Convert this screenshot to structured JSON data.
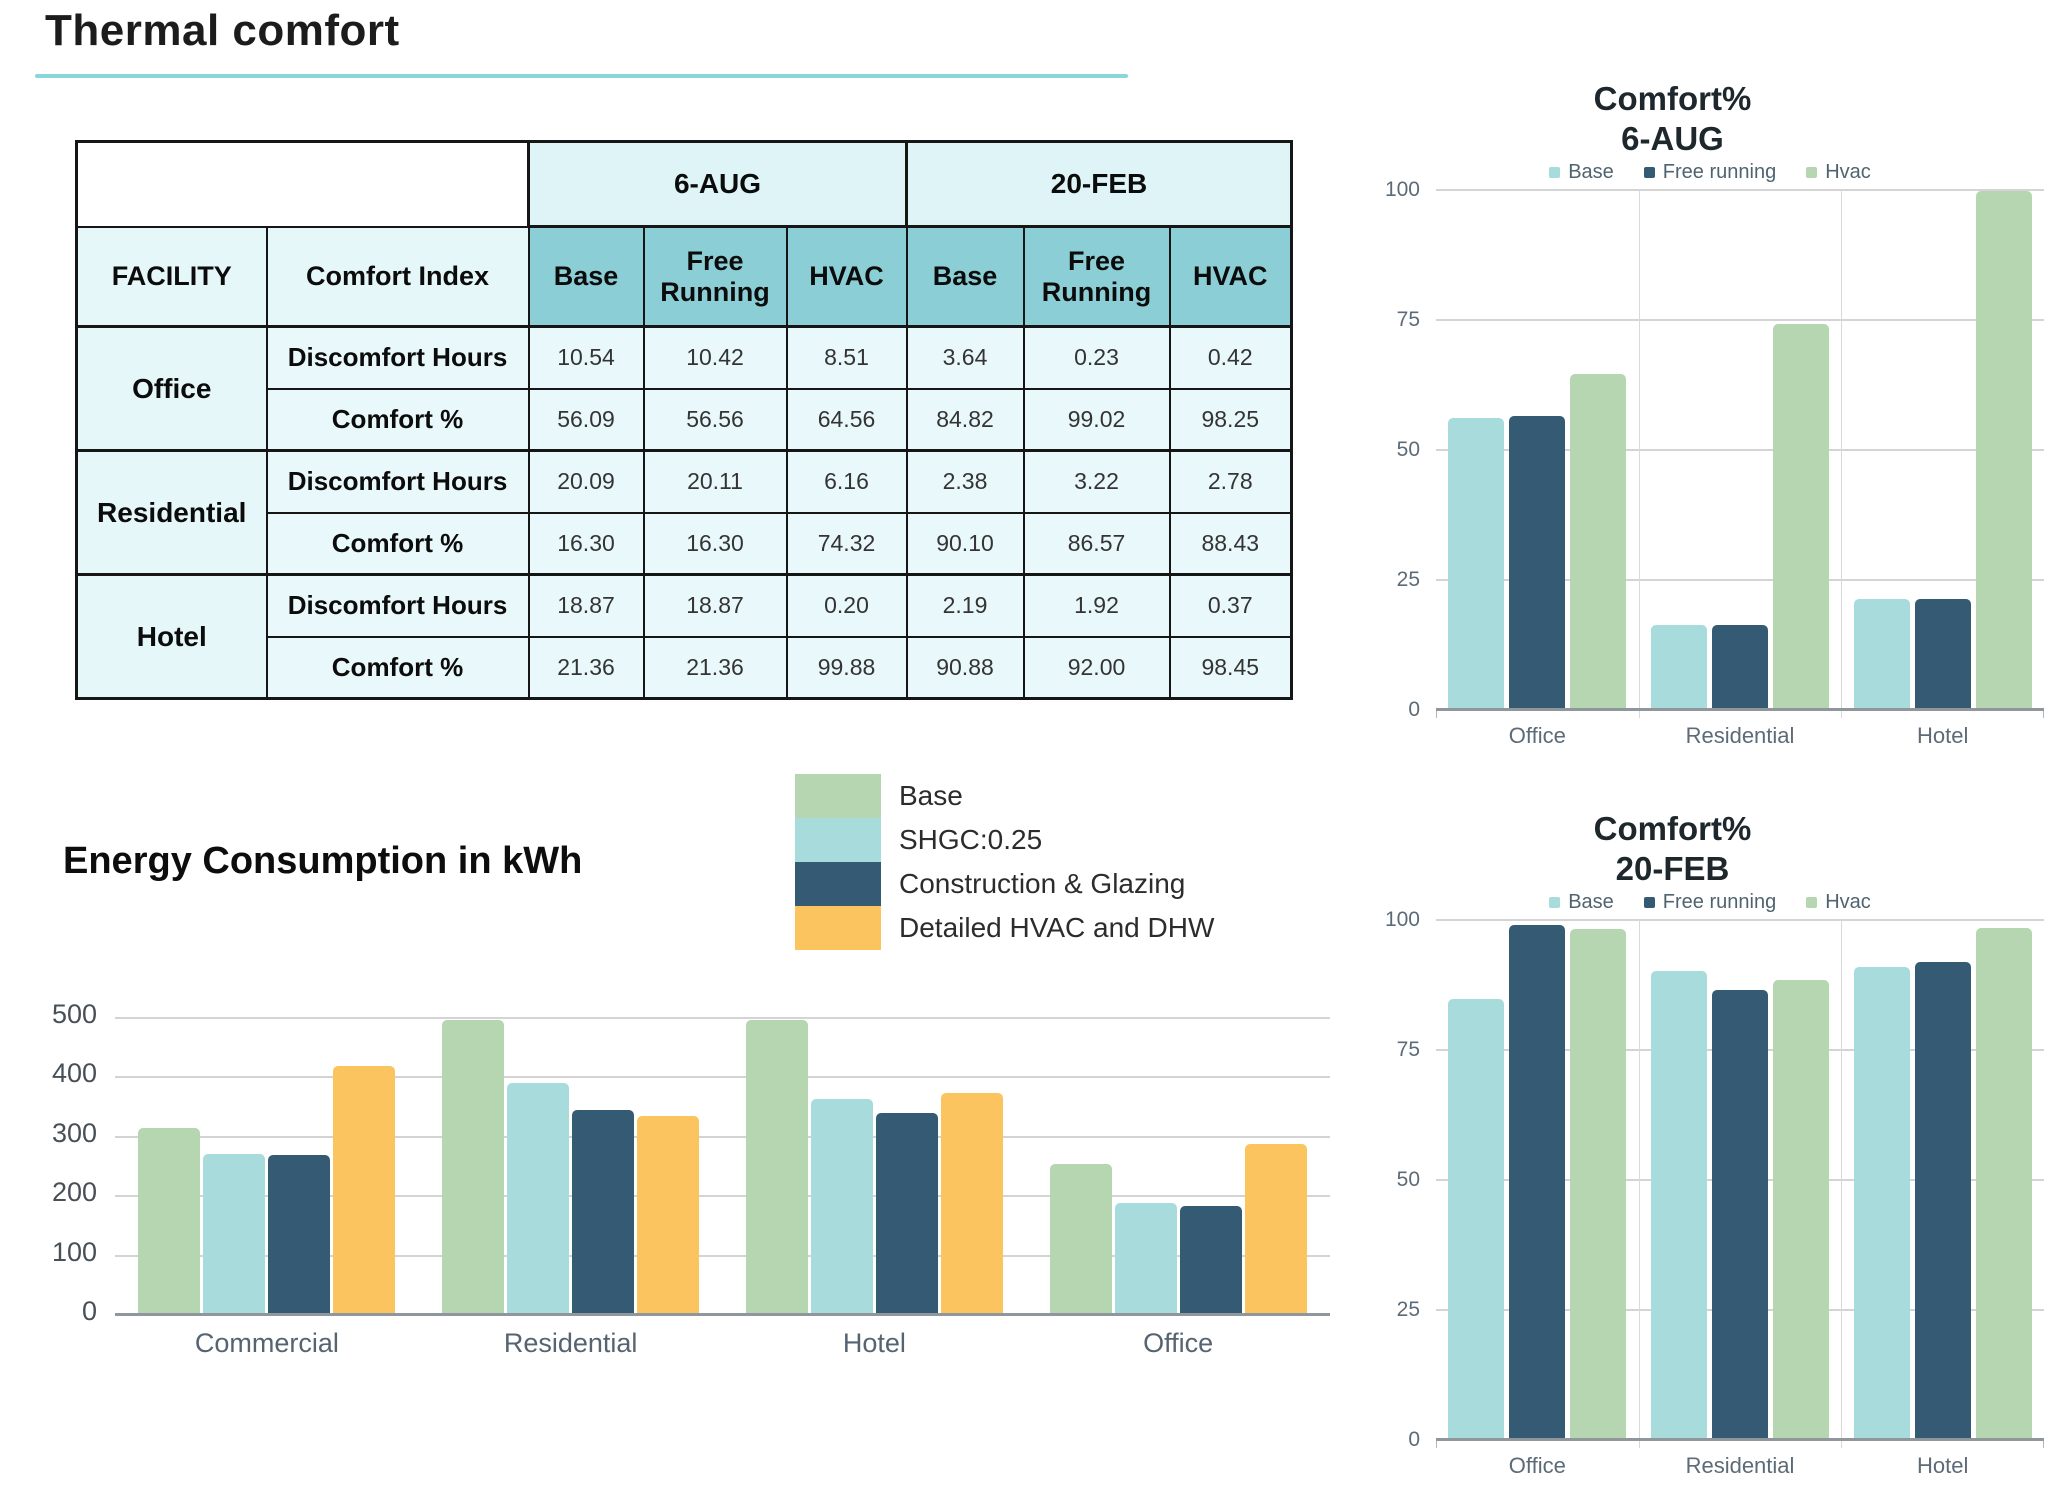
{
  "page": {
    "title": "Thermal comfort"
  },
  "colors": {
    "accent_underline": "#8ad6dd",
    "base_cyan": "#a7dbdc",
    "free_running_dark": "#345b73",
    "hvac_green": "#b6d6b1",
    "detailed_hvac_yellow": "#fcc45e",
    "table_header_teal": "#8bced5",
    "table_header_light": "#dff4f6",
    "table_cell_bg": "#e9f8fa",
    "grid_line": "#d4d4d4",
    "axis_line": "#8f969c",
    "tick_text": "#5c6b77"
  },
  "table": {
    "group_headers": [
      "6-AUG",
      "20-FEB"
    ],
    "columns": [
      "FACILITY",
      "Comfort Index",
      "Base",
      "Free Running",
      "HVAC",
      "Base",
      "Free Running",
      "HVAC"
    ],
    "facilities": [
      {
        "name": "Office",
        "rows": [
          {
            "index": "Discomfort Hours",
            "values": [
              "10.54",
              "10.42",
              "8.51",
              "3.64",
              "0.23",
              "0.42"
            ]
          },
          {
            "index": "Comfort %",
            "values": [
              "56.09",
              "56.56",
              "64.56",
              "84.82",
              "99.02",
              "98.25"
            ]
          }
        ]
      },
      {
        "name": "Residential",
        "rows": [
          {
            "index": "Discomfort Hours",
            "values": [
              "20.09",
              "20.11",
              "6.16",
              "2.38",
              "3.22",
              "2.78"
            ]
          },
          {
            "index": "Comfort %",
            "values": [
              "16.30",
              "16.30",
              "74.32",
              "90.10",
              "86.57",
              "88.43"
            ]
          }
        ]
      },
      {
        "name": "Hotel",
        "rows": [
          {
            "index": "Discomfort Hours",
            "values": [
              "18.87",
              "18.87",
              "0.20",
              "2.19",
              "1.92",
              "0.37"
            ]
          },
          {
            "index": "Comfort %",
            "values": [
              "21.36",
              "21.36",
              "99.88",
              "90.88",
              "92.00",
              "98.45"
            ]
          }
        ]
      }
    ]
  },
  "chart_data": [
    {
      "id": "comfort_aug",
      "type": "bar",
      "title": "Comfort%",
      "subtitle": "6-AUG",
      "categories": [
        "Office",
        "Residential",
        "Hotel"
      ],
      "series": [
        {
          "name": "Base",
          "color": "#a7dbdc",
          "values": [
            56.09,
            16.3,
            21.36
          ]
        },
        {
          "name": "Free running",
          "color": "#345b73",
          "values": [
            56.56,
            16.3,
            21.36
          ]
        },
        {
          "name": "Hvac",
          "color": "#b6d6b1",
          "values": [
            64.56,
            74.32,
            99.88
          ]
        }
      ],
      "ylim": [
        0,
        100
      ],
      "yticks": [
        0,
        25,
        50,
        75,
        100
      ],
      "legend_position": "top",
      "grid": true
    },
    {
      "id": "comfort_feb",
      "type": "bar",
      "title": "Comfort%",
      "subtitle": "20-FEB",
      "categories": [
        "Office",
        "Residential",
        "Hotel"
      ],
      "series": [
        {
          "name": "Base",
          "color": "#a7dbdc",
          "values": [
            84.82,
            90.1,
            90.88
          ]
        },
        {
          "name": "Free running",
          "color": "#345b73",
          "values": [
            99.02,
            86.57,
            92.0
          ]
        },
        {
          "name": "Hvac",
          "color": "#b6d6b1",
          "values": [
            98.25,
            88.43,
            98.45
          ]
        }
      ],
      "ylim": [
        0,
        100
      ],
      "yticks": [
        0,
        25,
        50,
        75,
        100
      ],
      "legend_position": "top",
      "grid": true
    },
    {
      "id": "energy",
      "type": "bar",
      "title": "Energy Consumption in kWh",
      "categories": [
        "Commercial",
        "Residential",
        "Hotel",
        "Office"
      ],
      "series": [
        {
          "name": "Base",
          "color": "#b6d6b1",
          "values": [
            315,
            496,
            497,
            254
          ]
        },
        {
          "name": "SHGC:0.25",
          "color": "#a7dbdc",
          "values": [
            271,
            390,
            363,
            189
          ]
        },
        {
          "name": "Construction & Glazing",
          "color": "#345b73",
          "values": [
            269,
            345,
            340,
            183
          ]
        },
        {
          "name": "Detailed HVAC and DHW",
          "color": "#fcc45e",
          "values": [
            420,
            335,
            374,
            288
          ]
        }
      ],
      "ylim": [
        0,
        500
      ],
      "yticks": [
        0,
        100,
        200,
        300,
        400,
        500
      ],
      "legend_position": "top-right",
      "grid": true
    }
  ]
}
